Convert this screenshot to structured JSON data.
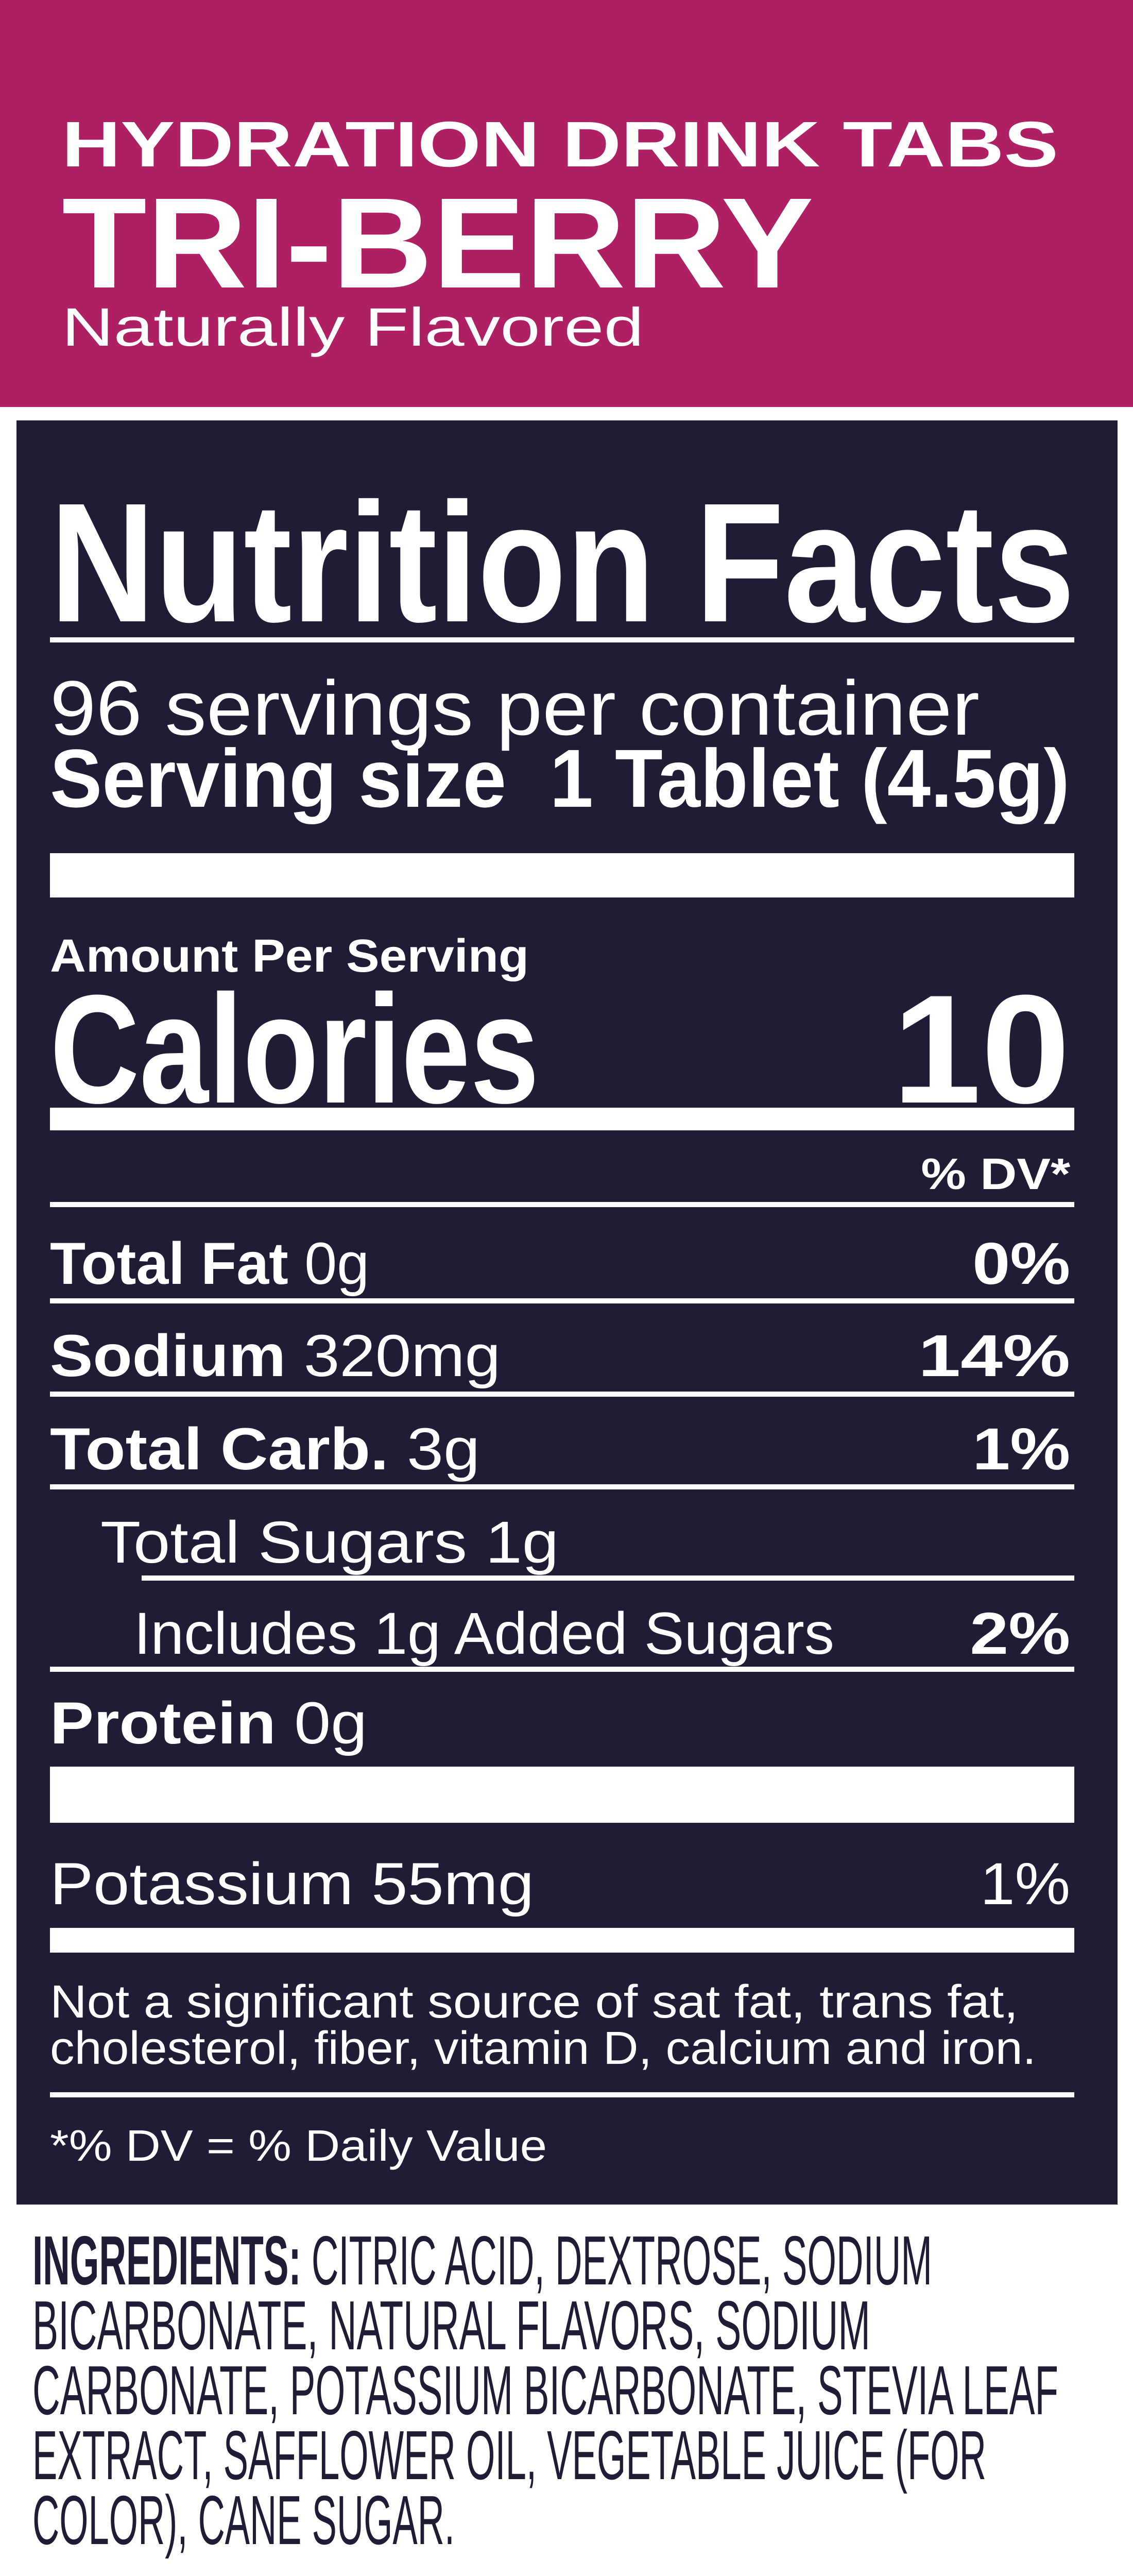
{
  "colors": {
    "brand": "#AE1F63",
    "panel": "#1F1C35",
    "text_light": "#FFFFFF"
  },
  "header": {
    "product_line": "HYDRATION DRINK TABS",
    "flavor": "TRI-BERRY",
    "subtitle": "Naturally Flavored"
  },
  "nutrition": {
    "title": "Nutrition Facts",
    "servings": "96 servings per container",
    "serving_size_label": "Serving size",
    "serving_size_value": "1 Tablet (4.5g)",
    "amount_per_serving": "Amount Per Serving",
    "calories_label": "Calories",
    "calories_value": "10",
    "dv_header": "% DV*",
    "rows": [
      {
        "label": "Total Fat",
        "amount": "0g",
        "dv": "0%"
      },
      {
        "label": "Sodium",
        "amount": "320mg",
        "dv": "14%"
      },
      {
        "label": "Total Carb.",
        "amount": "3g",
        "dv": "1%"
      },
      {
        "label": "Total Sugars 1g",
        "amount": "",
        "dv": ""
      },
      {
        "label": "Includes 1g Added Sugars",
        "amount": "",
        "dv": "2%"
      },
      {
        "label": "Protein",
        "amount": "0g",
        "dv": ""
      }
    ],
    "potassium": {
      "label": "Potassium 55mg",
      "dv": "1%"
    },
    "footnote_lines": [
      "Not a significant source of sat fat, trans fat,",
      "cholesterol, fiber, vitamin D, calcium and iron."
    ],
    "dv_note": "*% DV = % Daily Value"
  },
  "ingredients": {
    "label": "INGREDIENTS:",
    "lines": [
      " CITRIC ACID, DEXTROSE, SODIUM",
      "BICARBONATE, NATURAL FLAVORS, SODIUM",
      "CARBONATE, POTASSIUM BICARBONATE, STEVIA LEAF",
      "EXTRACT, SAFFLOWER OIL, VEGETABLE JUICE (FOR",
      "COLOR), CANE SUGAR."
    ]
  }
}
